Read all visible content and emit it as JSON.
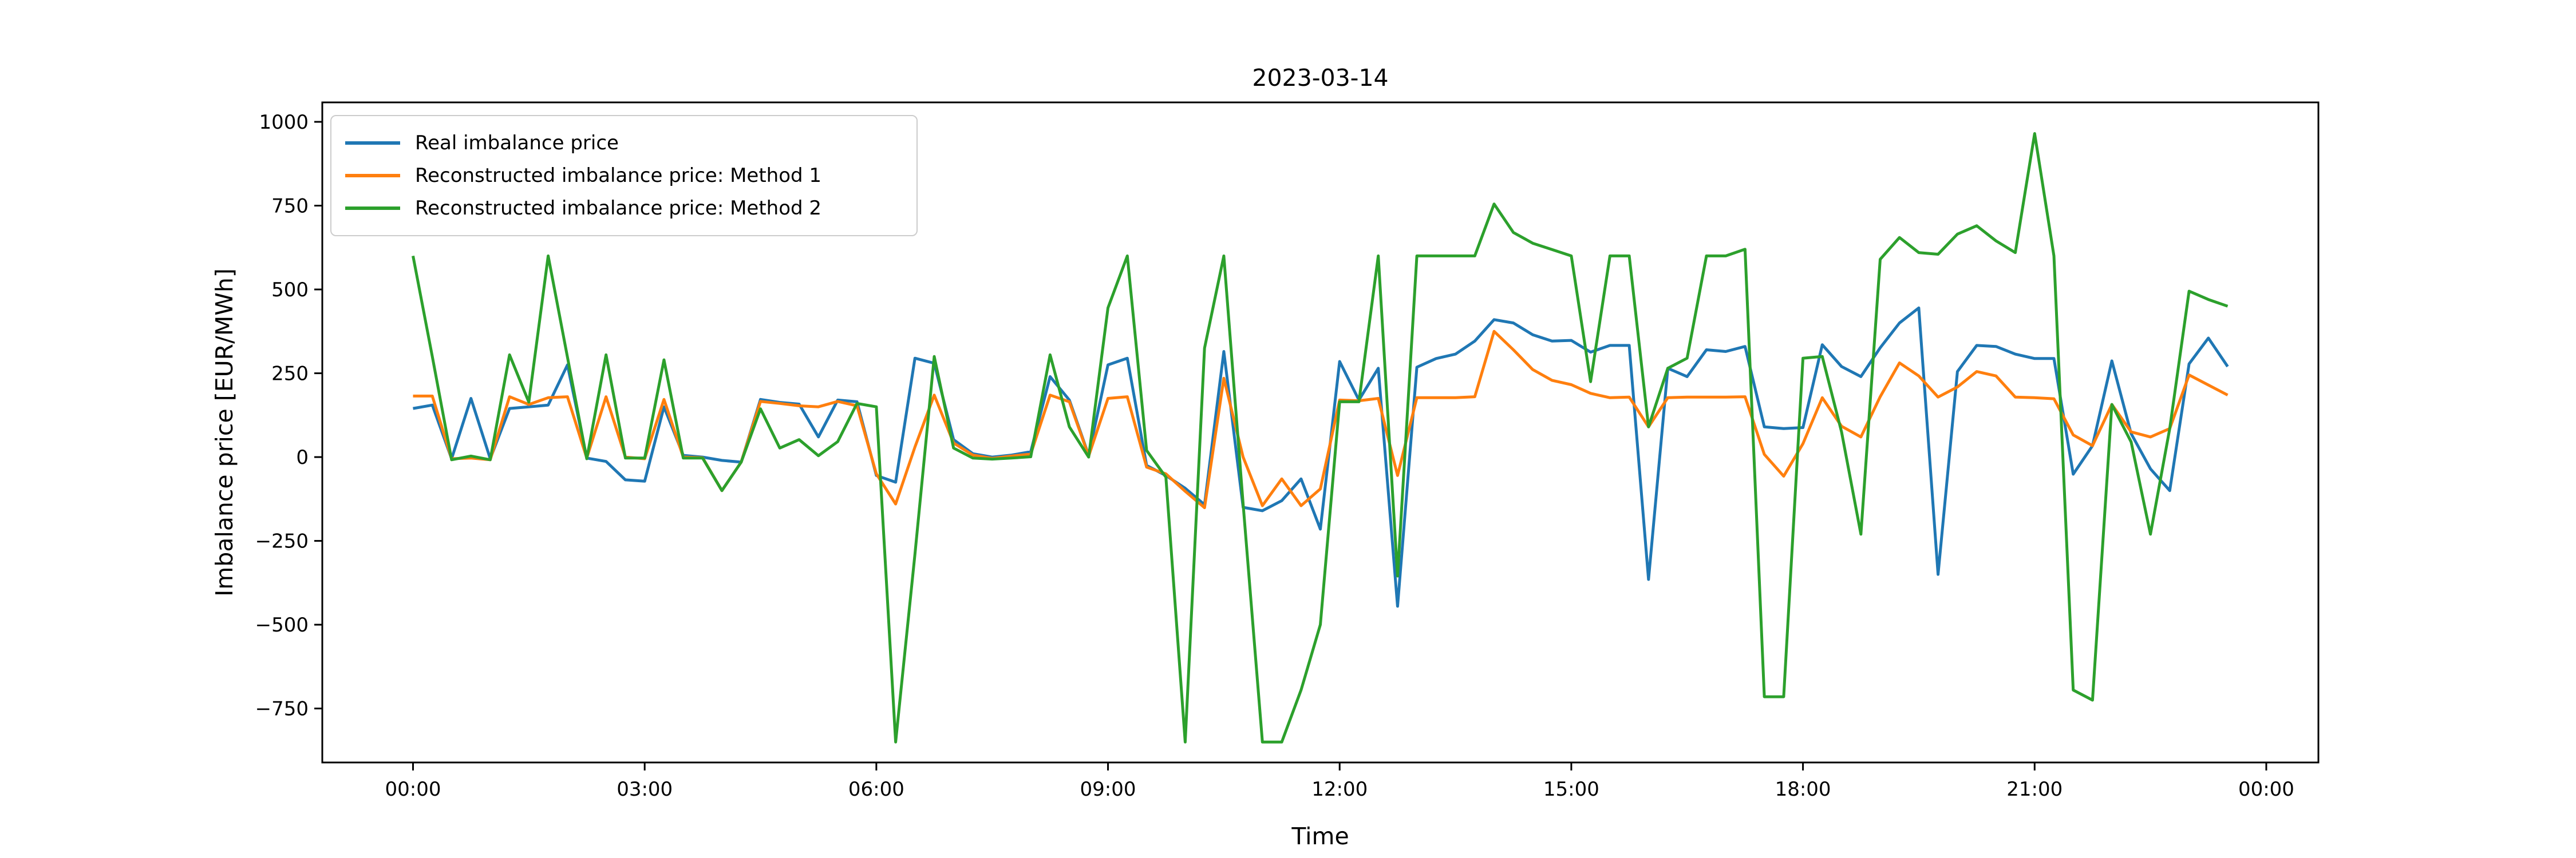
{
  "title": "2023-03-14",
  "x_axis": {
    "label": "Time",
    "tick_labels": [
      "00:00",
      "03:00",
      "06:00",
      "09:00",
      "12:00",
      "15:00",
      "18:00",
      "21:00",
      "00:00"
    ]
  },
  "y_axis": {
    "label": "Imbalance price [EUR/MWh]",
    "tick_values": [
      1000,
      750,
      500,
      250,
      0,
      -250,
      -500,
      -750
    ]
  },
  "chart_data": {
    "type": "line",
    "title": "2023-03-14",
    "xlabel": "Time",
    "ylabel": "Imbalance price [EUR/MWh]",
    "grid": false,
    "legend_position": "upper left",
    "x_times": [
      "00:00",
      "00:15",
      "00:30",
      "00:45",
      "01:00",
      "01:15",
      "01:30",
      "01:45",
      "02:00",
      "02:15",
      "02:30",
      "02:45",
      "03:00",
      "03:15",
      "03:30",
      "03:45",
      "04:00",
      "04:15",
      "04:30",
      "04:45",
      "05:00",
      "05:15",
      "05:30",
      "05:45",
      "06:00",
      "06:15",
      "06:30",
      "06:45",
      "07:00",
      "07:15",
      "07:30",
      "07:45",
      "08:00",
      "08:15",
      "08:30",
      "08:45",
      "09:00",
      "09:15",
      "09:30",
      "09:45",
      "10:00",
      "10:15",
      "10:30",
      "10:45",
      "11:00",
      "11:15",
      "11:30",
      "11:45",
      "12:00",
      "12:15",
      "12:30",
      "12:45",
      "13:00",
      "13:15",
      "13:30",
      "13:45",
      "14:00",
      "14:15",
      "14:30",
      "14:45",
      "15:00",
      "15:15",
      "15:30",
      "15:45",
      "16:00",
      "16:15",
      "16:30",
      "16:45",
      "17:00",
      "17:15",
      "17:30",
      "17:45",
      "18:00",
      "18:15",
      "18:30",
      "18:45",
      "19:00",
      "19:15",
      "19:30",
      "19:45",
      "20:00",
      "20:15",
      "20:30",
      "20:45",
      "21:00",
      "21:15",
      "21:30",
      "21:45",
      "22:00",
      "22:15",
      "22:30",
      "22:45",
      "23:00",
      "23:15",
      "23:30"
    ],
    "x_tick_indices": [
      0,
      12,
      24,
      36,
      48,
      60,
      72,
      84,
      96
    ],
    "x_index_range": [
      -4.7,
      98.7
    ],
    "y_range": [
      -911,
      1058
    ],
    "series": [
      {
        "name": "Real imbalance price",
        "color": "#1f77b4",
        "values": [
          145,
          155,
          -5,
          175,
          -5,
          145,
          150,
          155,
          275,
          -3,
          -13,
          -68,
          -72,
          150,
          5,
          0,
          -10,
          -15,
          172,
          163,
          158,
          60,
          170,
          165,
          -55,
          -75,
          295,
          280,
          52,
          10,
          0,
          6,
          16,
          240,
          170,
          5,
          275,
          295,
          -25,
          -55,
          -93,
          -142,
          315,
          -150,
          -160,
          -130,
          -65,
          -215,
          285,
          170,
          265,
          -445,
          268,
          294,
          307,
          346,
          410,
          400,
          365,
          346,
          348,
          313,
          333,
          333,
          -365,
          265,
          240,
          320,
          315,
          330,
          90,
          85,
          88,
          335,
          270,
          240,
          326,
          400,
          445,
          -350,
          255,
          333,
          330,
          307,
          294,
          294,
          -51,
          34,
          287,
          70,
          -35,
          -100,
          278,
          355,
          270
        ]
      },
      {
        "name": "Reconstructed imbalance price: Method 1",
        "color": "#ff7f0e",
        "values": [
          182,
          182,
          -5,
          -3,
          -8,
          180,
          157,
          177,
          180,
          -3,
          180,
          0,
          -5,
          172,
          0,
          -2,
          -100,
          -15,
          166,
          160,
          153,
          150,
          166,
          153,
          -50,
          -140,
          30,
          185,
          42,
          6,
          -4,
          3,
          9,
          185,
          165,
          3,
          175,
          180,
          -30,
          -50,
          -102,
          -151,
          235,
          0,
          -145,
          -65,
          -145,
          -95,
          170,
          168,
          175,
          -55,
          177,
          177,
          177,
          180,
          375,
          320,
          261,
          229,
          216,
          190,
          177,
          179,
          90,
          177,
          179,
          179,
          179,
          180,
          8,
          -57,
          40,
          177,
          92,
          60,
          180,
          281,
          242,
          179,
          209,
          255,
          242,
          179,
          177,
          174,
          66,
          34,
          157,
          75,
          60,
          85,
          245,
          215,
          185
        ]
      },
      {
        "name": "Reconstructed imbalance price: Method 2",
        "color": "#2ca02c",
        "values": [
          600,
          300,
          -8,
          3,
          -8,
          305,
          164,
          600,
          298,
          -5,
          305,
          -3,
          -3,
          290,
          -3,
          -3,
          -100,
          -15,
          144,
          27,
          52,
          4,
          46,
          160,
          150,
          -850,
          -290,
          300,
          27,
          -3,
          -6,
          -3,
          1,
          305,
          90,
          0,
          445,
          600,
          20,
          -60,
          -850,
          325,
          600,
          -140,
          -850,
          -850,
          -695,
          -500,
          165,
          165,
          600,
          -355,
          600,
          600,
          600,
          600,
          755,
          670,
          638,
          619,
          600,
          225,
          600,
          600,
          90,
          265,
          295,
          600,
          600,
          620,
          -715,
          -715,
          295,
          300,
          75,
          -230,
          590,
          655,
          610,
          605,
          665,
          690,
          645,
          610,
          965,
          600,
          -695,
          -725,
          157,
          45,
          -230,
          85,
          495,
          470,
          450
        ]
      }
    ]
  }
}
